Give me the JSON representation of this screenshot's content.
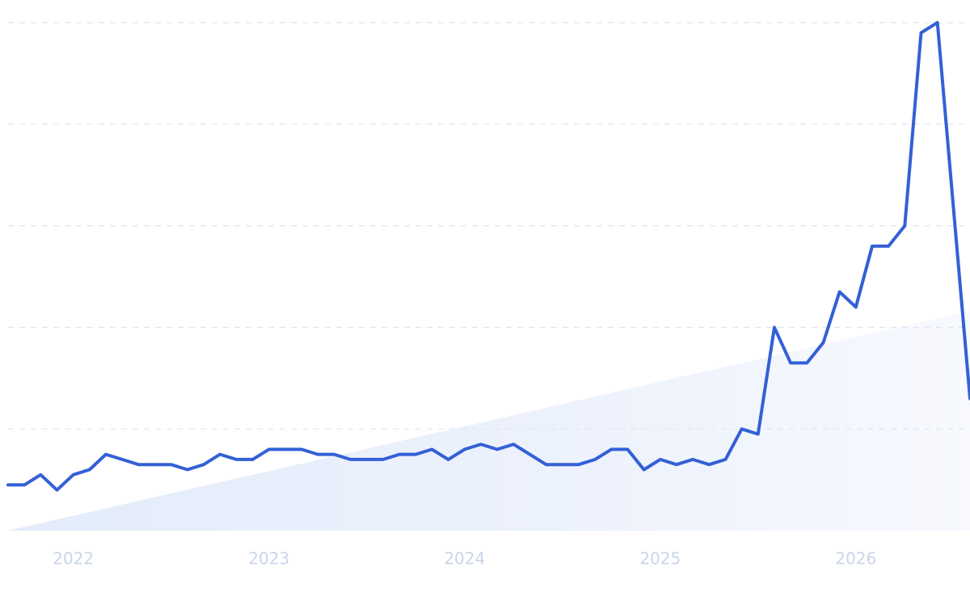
{
  "chart_data": {
    "type": "line",
    "categories": [
      null,
      null,
      null,
      null,
      "2022",
      null,
      null,
      null,
      null,
      null,
      null,
      null,
      null,
      null,
      null,
      null,
      "2023",
      null,
      null,
      null,
      null,
      null,
      null,
      null,
      null,
      null,
      null,
      null,
      "2024",
      null,
      null,
      null,
      null,
      null,
      null,
      null,
      null,
      null,
      null,
      null,
      "2025",
      null,
      null,
      null,
      null,
      null,
      null,
      null,
      null,
      null,
      null,
      null,
      "2026",
      null,
      null,
      null,
      null,
      null,
      null,
      null
    ],
    "values": [
      9,
      9,
      11,
      8,
      11,
      12,
      15,
      14,
      13,
      13,
      13,
      12,
      13,
      15,
      14,
      14,
      16,
      16,
      16,
      15,
      15,
      14,
      14,
      14,
      15,
      15,
      16,
      14,
      16,
      17,
      16,
      17,
      15,
      13,
      13,
      13,
      14,
      16,
      16,
      12,
      14,
      13,
      14,
      13,
      14,
      20,
      19,
      40,
      33,
      33,
      37,
      47,
      44,
      56,
      56,
      60,
      98,
      100,
      63,
      26
    ],
    "color": "#3360d6",
    "ylim": [
      0,
      100
    ],
    "ygrid": [
      20,
      40,
      60,
      80,
      100
    ]
  }
}
